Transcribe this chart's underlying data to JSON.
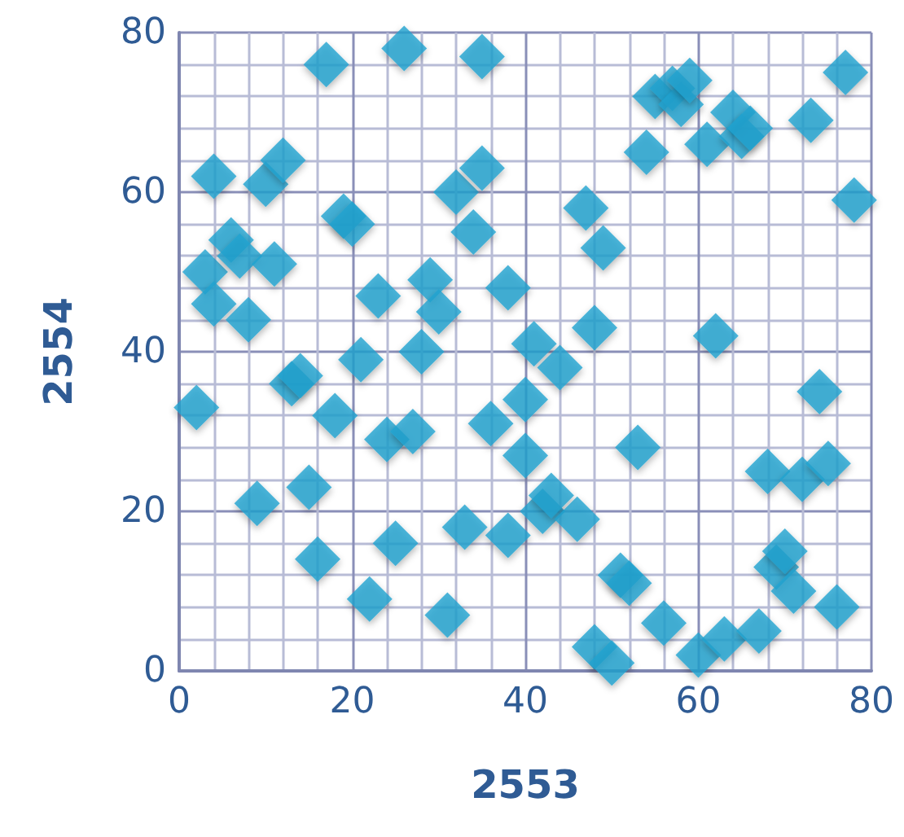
{
  "chart_data": {
    "type": "scatter",
    "xlabel": "2553",
    "ylabel": "2554",
    "x": [
      4,
      3,
      2,
      4,
      6,
      7,
      8,
      9,
      10,
      12,
      11,
      13,
      14,
      15,
      16,
      17,
      18,
      19,
      20,
      21,
      22,
      23,
      24,
      25,
      26,
      27,
      28,
      29,
      30,
      31,
      32,
      33,
      34,
      35,
      35,
      36,
      38,
      38,
      40,
      40,
      41,
      42,
      43,
      44,
      46,
      47,
      48,
      48,
      49,
      50,
      51,
      52,
      53,
      54,
      55,
      56,
      57,
      58,
      59,
      60,
      61,
      62,
      63,
      64,
      65,
      66,
      67,
      68,
      69,
      70,
      71,
      72,
      73,
      74,
      75,
      76,
      77,
      78
    ],
    "series": [
      {
        "color": "#1fa2cf",
        "values": [
          62,
          50,
          33,
          46,
          54,
          52,
          44,
          21,
          61,
          64,
          51,
          36,
          37,
          23,
          14,
          76,
          32,
          57,
          56,
          39,
          9,
          47,
          29,
          16,
          78,
          30,
          40,
          49,
          45,
          7,
          60,
          18,
          55,
          77,
          63,
          31,
          48,
          17,
          27,
          34,
          41,
          20,
          22,
          38,
          19,
          58,
          3,
          43,
          53,
          1,
          12,
          11,
          28,
          65,
          72,
          6,
          73,
          71,
          74,
          2,
          66,
          42,
          4,
          70,
          67,
          68,
          5,
          25,
          13,
          15,
          10,
          24,
          69,
          35,
          26,
          8,
          75,
          59
        ]
      }
    ],
    "xlim": [
      0,
      80
    ],
    "ylim": [
      0,
      80
    ],
    "xticks": [
      0,
      20,
      40,
      60,
      80
    ],
    "yticks": [
      0,
      20,
      40,
      60,
      80
    ],
    "grid": true,
    "marker": "diamond"
  }
}
